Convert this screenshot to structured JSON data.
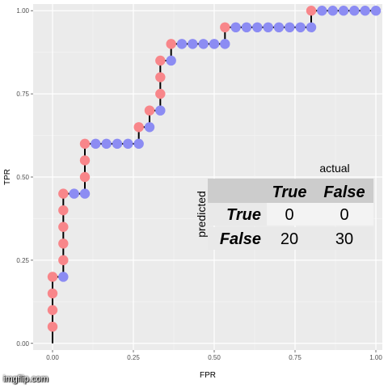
{
  "chart_data": {
    "type": "scatter",
    "title": "",
    "xlabel": "FPR",
    "ylabel": "TPR",
    "xlim": [
      -0.06,
      1.02
    ],
    "ylim": [
      -0.02,
      1.02
    ],
    "x_ticks": [
      0.0,
      0.25,
      0.5,
      0.75,
      1.0
    ],
    "x_tick_labels": [
      "0.00",
      "0.25",
      "0.50",
      "0.75",
      "1.00"
    ],
    "y_ticks": [
      0.0,
      0.25,
      0.5,
      0.75,
      1.0
    ],
    "y_tick_labels": [
      "0.00",
      "0.25",
      "0.50",
      "0.75",
      "1.00"
    ],
    "grid": true,
    "background": "#ebebeb",
    "step_line": [
      [
        0.0,
        0.0
      ],
      [
        0.0,
        0.2
      ],
      [
        0.0333,
        0.2
      ],
      [
        0.0333,
        0.45
      ],
      [
        0.1,
        0.45
      ],
      [
        0.1,
        0.6
      ],
      [
        0.2667,
        0.6
      ],
      [
        0.2667,
        0.65
      ],
      [
        0.3,
        0.65
      ],
      [
        0.3,
        0.7
      ],
      [
        0.3333,
        0.7
      ],
      [
        0.3333,
        0.85
      ],
      [
        0.3667,
        0.85
      ],
      [
        0.3667,
        0.9
      ],
      [
        0.5333,
        0.9
      ],
      [
        0.5333,
        0.95
      ],
      [
        0.8,
        0.95
      ],
      [
        0.8,
        1.0
      ],
      [
        1.0,
        1.0
      ]
    ],
    "series": [
      {
        "name": "True",
        "color": "#f8868a",
        "points": [
          [
            0.0,
            0.05
          ],
          [
            0.0,
            0.1
          ],
          [
            0.0,
            0.15
          ],
          [
            0.0,
            0.2
          ],
          [
            0.0333,
            0.25
          ],
          [
            0.0333,
            0.3
          ],
          [
            0.0333,
            0.35
          ],
          [
            0.0333,
            0.4
          ],
          [
            0.0333,
            0.45
          ],
          [
            0.1,
            0.5
          ],
          [
            0.1,
            0.55
          ],
          [
            0.1,
            0.6
          ],
          [
            0.2667,
            0.65
          ],
          [
            0.3,
            0.7
          ],
          [
            0.3333,
            0.75
          ],
          [
            0.3333,
            0.8
          ],
          [
            0.3333,
            0.85
          ],
          [
            0.3667,
            0.9
          ],
          [
            0.5333,
            0.95
          ],
          [
            0.8,
            1.0
          ]
        ]
      },
      {
        "name": "False",
        "color": "#8c8cf3",
        "points": [
          [
            0.0333,
            0.2
          ],
          [
            0.0667,
            0.45
          ],
          [
            0.1,
            0.45
          ],
          [
            0.1333,
            0.6
          ],
          [
            0.1667,
            0.6
          ],
          [
            0.2,
            0.6
          ],
          [
            0.2333,
            0.6
          ],
          [
            0.2667,
            0.6
          ],
          [
            0.3,
            0.65
          ],
          [
            0.3333,
            0.7
          ],
          [
            0.3667,
            0.85
          ],
          [
            0.4,
            0.9
          ],
          [
            0.4333,
            0.9
          ],
          [
            0.4667,
            0.9
          ],
          [
            0.5,
            0.9
          ],
          [
            0.5333,
            0.9
          ],
          [
            0.5667,
            0.95
          ],
          [
            0.6,
            0.95
          ],
          [
            0.6333,
            0.95
          ],
          [
            0.6667,
            0.95
          ],
          [
            0.7,
            0.95
          ],
          [
            0.7333,
            0.95
          ],
          [
            0.7667,
            0.95
          ],
          [
            0.8,
            0.95
          ],
          [
            0.8333,
            1.0
          ],
          [
            0.8667,
            1.0
          ],
          [
            0.9,
            1.0
          ],
          [
            0.9333,
            1.0
          ],
          [
            0.9667,
            1.0
          ],
          [
            1.0,
            1.0
          ]
        ]
      }
    ],
    "confusion_table": {
      "col_caption": "actual",
      "row_caption": "predicted",
      "col_headers": [
        "True",
        "False"
      ],
      "rows": [
        {
          "header": "True",
          "cells": [
            "0",
            "0"
          ]
        },
        {
          "header": "False",
          "cells": [
            "20",
            "30"
          ]
        }
      ]
    }
  },
  "watermark": "imgflip.com"
}
